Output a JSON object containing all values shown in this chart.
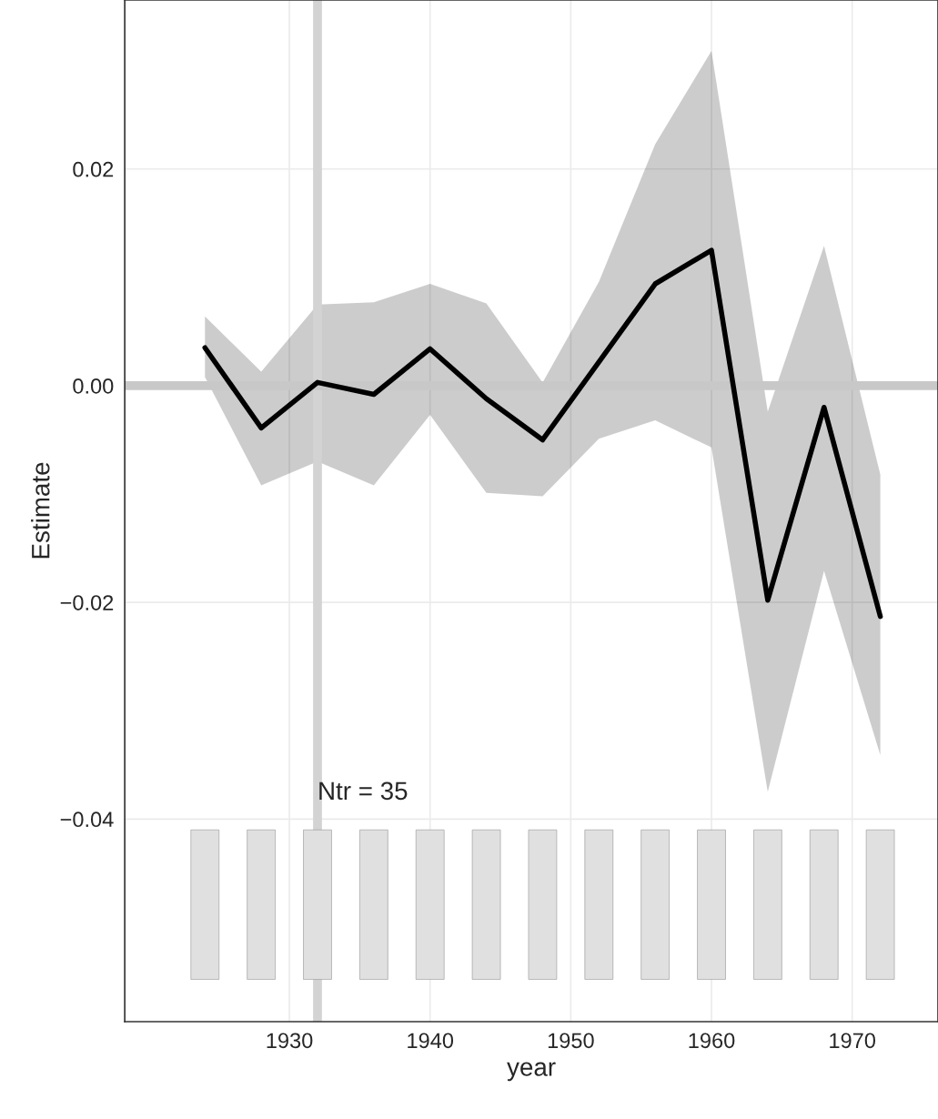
{
  "chart_data": {
    "type": "line",
    "xlabel": "year",
    "ylabel": "Estimate",
    "x": [
      1924,
      1928,
      1932,
      1936,
      1940,
      1944,
      1948,
      1952,
      1956,
      1960,
      1964,
      1968,
      1972
    ],
    "series": [
      {
        "type": "bar",
        "color": "#e0e0e0",
        "base": [
          -0.0548,
          -0.0548,
          -0.0548,
          -0.0548,
          -0.0548,
          -0.0548,
          -0.0548,
          -0.0548,
          -0.0548,
          -0.0548,
          -0.0548,
          -0.0548,
          -0.0548
        ],
        "values": [
          0.0138,
          0.0138,
          0.0138,
          0.0138,
          0.0138,
          0.0138,
          0.0138,
          0.0138,
          0.0138,
          0.0138,
          0.0138,
          0.0138,
          0.0138
        ]
      },
      {
        "color": "#000000",
        "values": [
          0.0035,
          -0.0039,
          0.0003,
          -0.0008,
          0.0034,
          -0.0012,
          -0.005,
          0.0022,
          0.0094,
          0.0125,
          -0.0198,
          -0.002,
          -0.0213
        ],
        "lower": [
          0.0008,
          -0.0092,
          -0.007,
          -0.0092,
          -0.0027,
          -0.0099,
          -0.0102,
          -0.0049,
          -0.0032,
          -0.0057,
          -0.0375,
          -0.0171,
          -0.0341
        ],
        "upper": [
          0.0064,
          0.0013,
          0.0075,
          0.0077,
          0.0094,
          0.0076,
          0.0003,
          0.0096,
          0.0223,
          0.0309,
          -0.0024,
          0.0129,
          -0.0082
        ]
      }
    ],
    "ref_lines": [
      {
        "axis": "x",
        "value": 1932,
        "color": "#d3d3d3"
      },
      {
        "axis": "y",
        "value": 0,
        "color": "#c8c8c8"
      }
    ],
    "annotations": [
      {
        "text": "Ntr = 35",
        "x": 1932,
        "y": -0.0376
      }
    ],
    "xlim": [
      1918.3,
      1976.1
    ],
    "ylim": [
      -0.0587,
      0.0356
    ],
    "xticks": [
      1930,
      1940,
      1950,
      1960,
      1970
    ],
    "yticks": [
      {
        "value": -0.04,
        "label": "−0.04"
      },
      {
        "value": -0.02,
        "label": "−0.02"
      },
      {
        "value": 0,
        "label": "0.00"
      },
      {
        "value": 0.02,
        "label": "0.02"
      }
    ],
    "grid": true,
    "legend": false,
    "line_style": "solid",
    "marker": "none"
  }
}
